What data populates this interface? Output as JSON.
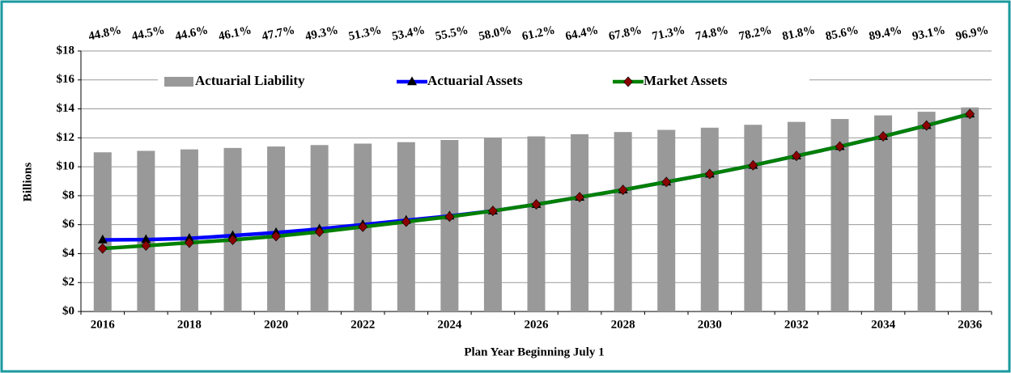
{
  "chart_data": {
    "type": "bar_line",
    "x_label": "Plan Year Beginning July 1",
    "y_label": "Billions",
    "categories": [
      "2016",
      null,
      "2018",
      null,
      "2020",
      null,
      "2022",
      null,
      "2024",
      null,
      "2026",
      null,
      "2028",
      null,
      "2030",
      null,
      "2032",
      null,
      "2034",
      null,
      "2036"
    ],
    "top_labels": [
      "44.8%",
      "44.5%",
      "44.6%",
      "46.1%",
      "47.7%",
      "49.3%",
      "51.3%",
      "53.4%",
      "55.5%",
      "58.0%",
      "61.2%",
      "64.4%",
      "67.8%",
      "71.3%",
      "74.8%",
      "78.2%",
      "81.8%",
      "85.6%",
      "89.4%",
      "93.1%",
      "96.9%"
    ],
    "series": [
      {
        "name": "Actuarial Liability",
        "kind": "bar",
        "color": "#999999",
        "values": [
          11.0,
          11.1,
          11.2,
          11.3,
          11.4,
          11.5,
          11.6,
          11.7,
          11.85,
          12.0,
          12.1,
          12.25,
          12.4,
          12.55,
          12.7,
          12.9,
          13.1,
          13.3,
          13.55,
          13.8,
          14.1
        ]
      },
      {
        "name": "Actuarial Assets",
        "kind": "line",
        "color": "#0000ff",
        "marker": "triangle",
        "marker_color": "#000000",
        "values": [
          4.95,
          4.97,
          5.05,
          5.25,
          5.45,
          5.7,
          6.0,
          6.3,
          6.6,
          6.95,
          7.4,
          7.9,
          8.4,
          8.95,
          9.5,
          10.1,
          10.75,
          11.4,
          12.1,
          12.85,
          13.65
        ]
      },
      {
        "name": "Market Assets",
        "kind": "line",
        "color": "#008000",
        "marker": "diamond",
        "marker_color": "#8b0000",
        "values": [
          4.35,
          4.55,
          4.75,
          4.95,
          5.2,
          5.5,
          5.85,
          6.2,
          6.55,
          6.95,
          7.4,
          7.9,
          8.4,
          8.95,
          9.5,
          10.1,
          10.75,
          11.4,
          12.1,
          12.85,
          13.65
        ]
      }
    ],
    "ylim": [
      0,
      18
    ],
    "yticks": [
      {
        "value": 0,
        "label": "$0"
      },
      {
        "value": 2,
        "label": "$2"
      },
      {
        "value": 4,
        "label": "$4"
      },
      {
        "value": 6,
        "label": "$6"
      },
      {
        "value": 8,
        "label": "$8"
      },
      {
        "value": 10,
        "label": "$10"
      },
      {
        "value": 12,
        "label": "$12"
      },
      {
        "value": 14,
        "label": "$14"
      },
      {
        "value": 16,
        "label": "$16"
      },
      {
        "value": 18,
        "label": "$18"
      }
    ],
    "grid": true,
    "legend_position": "top"
  }
}
